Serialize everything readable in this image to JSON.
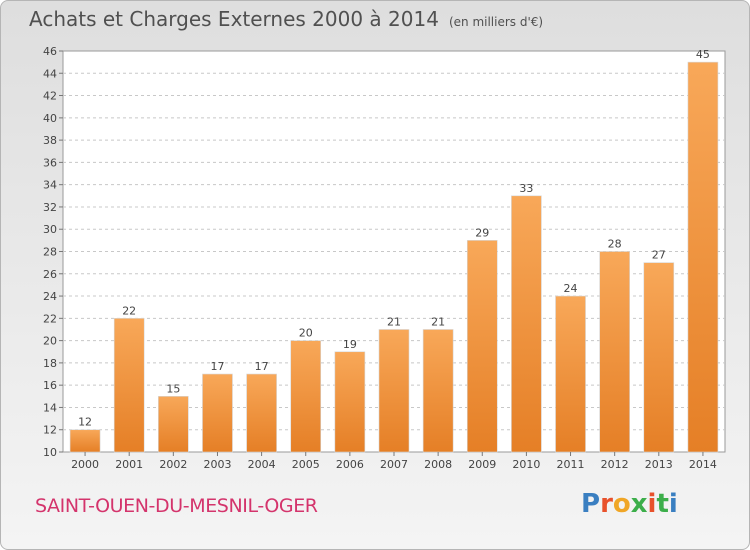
{
  "header": {
    "title": "Achats et Charges Externes 2000 à 2014",
    "unit": "(en milliers d'€)"
  },
  "footer": {
    "commune": "SAINT-OUEN-DU-MESNIL-OGER",
    "logo_text": "Proxiti",
    "logo_colors": [
      "#3a7fc1",
      "#e8512b",
      "#f0a626",
      "#3cae4a",
      "#e8512b",
      "#3cae4a",
      "#3a7fc1"
    ]
  },
  "chart_data": {
    "type": "bar",
    "title": "Achats et Charges Externes 2000 à 2014",
    "subtitle": "(en milliers d'€)",
    "categories": [
      "2000",
      "2001",
      "2002",
      "2003",
      "2004",
      "2005",
      "2006",
      "2007",
      "2008",
      "2009",
      "2010",
      "2011",
      "2012",
      "2013",
      "2014"
    ],
    "values": [
      12,
      22,
      15,
      17,
      17,
      20,
      19,
      21,
      21,
      29,
      33,
      24,
      28,
      27,
      45
    ],
    "ylim": [
      10,
      46
    ],
    "yticks": [
      10,
      12,
      14,
      16,
      18,
      20,
      22,
      24,
      26,
      28,
      30,
      32,
      34,
      36,
      38,
      40,
      42,
      44,
      46
    ],
    "grid": "horizontal-dashed",
    "colors": {
      "bar_light": "#f8a859",
      "bar_dark": "#e57f26",
      "grid": "#c8c8c8",
      "text": "#444444"
    }
  }
}
